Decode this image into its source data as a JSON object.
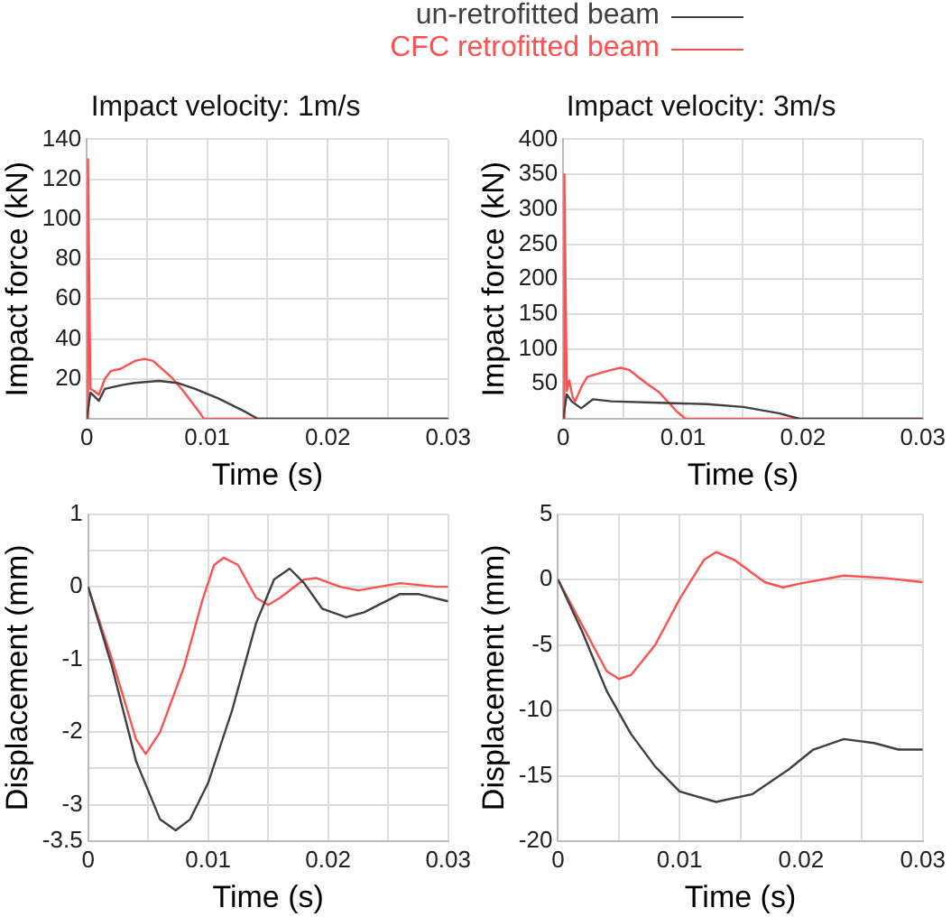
{
  "chart_data": [
    {
      "type": "line",
      "title": "Impact velocity: 1m/s",
      "xlabel": "Time (s)",
      "ylabel": "Impact force (kN)",
      "legend": "top",
      "grid": true,
      "xlim": [
        0,
        0.03
      ],
      "ylim": [
        0,
        140
      ],
      "xticks": [
        0,
        {
          "value": 0.005,
          "label": null
        },
        0.01,
        {
          "value": 0.015,
          "label": null
        },
        0.02,
        {
          "value": 0.025,
          "label": null
        },
        0.03
      ],
      "yticks": [
        {
          "value": 0,
          "label": null
        },
        20,
        40,
        60,
        80,
        100,
        120,
        140
      ],
      "series": [
        {
          "name": "un-retrofitted beam",
          "color": "#404040",
          "x": [
            0,
            0.0003,
            0.0005,
            0.001,
            0.0015,
            0.003,
            0.004,
            0.006,
            0.0075,
            0.009,
            0.011,
            0.013,
            0.0142,
            0.03
          ],
          "values": [
            0,
            13,
            12,
            9,
            15,
            17,
            18,
            19,
            18,
            15,
            10,
            4,
            0,
            0
          ]
        },
        {
          "name": "CFC retrofitted beam",
          "color": "#ff5050",
          "x": [
            0,
            0.0001,
            0.0003,
            0.0006,
            0.001,
            0.0015,
            0.002,
            0.0028,
            0.004,
            0.0048,
            0.0055,
            0.007,
            0.008,
            0.0095,
            0.0097,
            0.03
          ],
          "values": [
            0,
            130,
            15,
            14,
            12,
            20,
            24,
            25,
            29,
            30,
            29,
            21,
            14,
            2,
            0,
            0
          ]
        }
      ]
    },
    {
      "type": "line",
      "title": "Impact velocity: 3m/s",
      "xlabel": "Time (s)",
      "ylabel": "Impact force (kN)",
      "grid": true,
      "xlim": [
        0,
        0.03
      ],
      "ylim": [
        0,
        400
      ],
      "xticks": [
        0,
        {
          "value": 0.005,
          "label": null
        },
        0.01,
        {
          "value": 0.015,
          "label": null
        },
        0.02,
        {
          "value": 0.025,
          "label": null
        },
        0.03
      ],
      "yticks": [
        {
          "value": 0,
          "label": null
        },
        50,
        100,
        150,
        200,
        250,
        300,
        350,
        400
      ],
      "series": [
        {
          "color": "#404040",
          "x": [
            0,
            0.0003,
            0.0007,
            0.0015,
            0.0025,
            0.004,
            0.008,
            0.012,
            0.015,
            0.018,
            0.0197,
            0.03
          ],
          "values": [
            0,
            35,
            25,
            15,
            28,
            25,
            23,
            21,
            17,
            8,
            0,
            0
          ]
        },
        {
          "color": "#ff5050",
          "x": [
            0,
            0.0001,
            0.0003,
            0.0005,
            0.0008,
            0.001,
            0.0015,
            0.002,
            0.003,
            0.004,
            0.0048,
            0.0055,
            0.007,
            0.008,
            0.0095,
            0.0102,
            0.03
          ],
          "values": [
            0,
            350,
            40,
            55,
            30,
            25,
            45,
            60,
            65,
            70,
            73,
            70,
            50,
            38,
            10,
            0,
            0
          ]
        }
      ]
    },
    {
      "type": "line",
      "xlabel": "Time (s)",
      "ylabel": "Displacement (mm)",
      "grid": true,
      "xlim": [
        0,
        0.03
      ],
      "ylim": [
        -3.5,
        1
      ],
      "xticks": [
        0,
        {
          "value": 0.005,
          "label": null
        },
        0.01,
        {
          "value": 0.015,
          "label": null
        },
        0.02,
        {
          "value": 0.025,
          "label": null
        },
        0.03
      ],
      "yticks": [
        -3.5,
        -3,
        {
          "value": -2.5,
          "label": null
        },
        -2,
        {
          "value": -1.5,
          "label": null
        },
        -1,
        {
          "value": -0.5,
          "label": null
        },
        0,
        {
          "value": 0.5,
          "label": null
        },
        1
      ],
      "series": [
        {
          "color": "#404040",
          "x": [
            0,
            0.002,
            0.004,
            0.006,
            0.0073,
            0.0085,
            0.01,
            0.012,
            0.014,
            0.0155,
            0.0168,
            0.018,
            0.0195,
            0.0215,
            0.023,
            0.026,
            0.0275,
            0.03
          ],
          "values": [
            0,
            -1.1,
            -2.4,
            -3.2,
            -3.35,
            -3.2,
            -2.7,
            -1.7,
            -0.5,
            0.1,
            0.25,
            0.05,
            -0.3,
            -0.42,
            -0.35,
            -0.1,
            -0.1,
            -0.2
          ]
        },
        {
          "color": "#ff5050",
          "x": [
            0,
            0.002,
            0.004,
            0.0048,
            0.006,
            0.008,
            0.0095,
            0.0105,
            0.0113,
            0.0125,
            0.014,
            0.015,
            0.016,
            0.018,
            0.019,
            0.021,
            0.0225,
            0.026,
            0.029,
            0.03
          ],
          "values": [
            0,
            -1.0,
            -2.1,
            -2.3,
            -2.0,
            -1.1,
            -0.2,
            0.3,
            0.4,
            0.3,
            -0.15,
            -0.25,
            -0.15,
            0.1,
            0.12,
            0.0,
            -0.05,
            0.05,
            0.0,
            0.0
          ]
        }
      ]
    },
    {
      "type": "line",
      "xlabel": "Time (s)",
      "ylabel": "Displacement (mm)",
      "grid": true,
      "xlim": [
        0,
        0.03
      ],
      "ylim": [
        -20,
        5
      ],
      "xticks": [
        0,
        {
          "value": 0.005,
          "label": null
        },
        0.01,
        {
          "value": 0.015,
          "label": null
        },
        0.02,
        {
          "value": 0.025,
          "label": null
        },
        0.03
      ],
      "yticks": [
        -20,
        -15,
        -10,
        -5,
        0,
        5
      ],
      "series": [
        {
          "color": "#404040",
          "x": [
            0,
            0.002,
            0.004,
            0.006,
            0.008,
            0.01,
            0.013,
            0.016,
            0.019,
            0.021,
            0.0235,
            0.026,
            0.028,
            0.03
          ],
          "values": [
            0,
            -4,
            -8.5,
            -11.8,
            -14.3,
            -16.2,
            -17,
            -16.4,
            -14.5,
            -13,
            -12.2,
            -12.5,
            -13,
            -13
          ]
        },
        {
          "color": "#ff5050",
          "x": [
            0,
            0.002,
            0.004,
            0.005,
            0.006,
            0.008,
            0.01,
            0.012,
            0.013,
            0.0145,
            0.017,
            0.0185,
            0.02,
            0.0235,
            0.027,
            0.03
          ],
          "values": [
            0,
            -3.5,
            -7,
            -7.6,
            -7.3,
            -5,
            -1.5,
            1.5,
            2.1,
            1.5,
            -0.2,
            -0.6,
            -0.3,
            0.3,
            0.1,
            -0.2
          ]
        }
      ]
    }
  ]
}
